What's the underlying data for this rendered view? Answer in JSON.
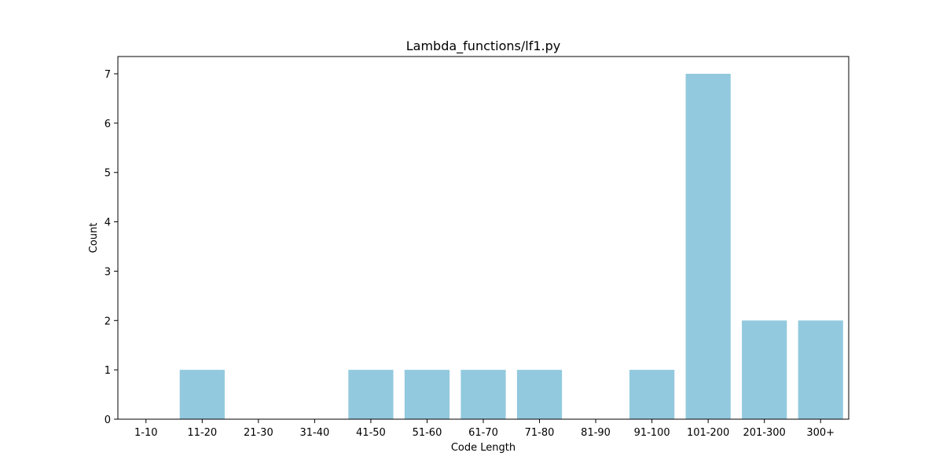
{
  "chart_data": {
    "type": "bar",
    "title": "Lambda_functions/lf1.py",
    "xlabel": "Code Length",
    "ylabel": "Count",
    "categories": [
      "1-10",
      "11-20",
      "21-30",
      "31-40",
      "41-50",
      "51-60",
      "61-70",
      "71-80",
      "81-90",
      "91-100",
      "101-200",
      "201-300",
      "300+"
    ],
    "values": [
      0,
      1,
      0,
      0,
      1,
      1,
      1,
      1,
      0,
      1,
      7,
      2,
      2
    ],
    "ylim": [
      0,
      7.35
    ],
    "yticks": [
      "0",
      "1",
      "2",
      "3",
      "4",
      "5",
      "6",
      "7"
    ],
    "grid": false,
    "legend": "none",
    "bar_color": "#92c9de"
  }
}
